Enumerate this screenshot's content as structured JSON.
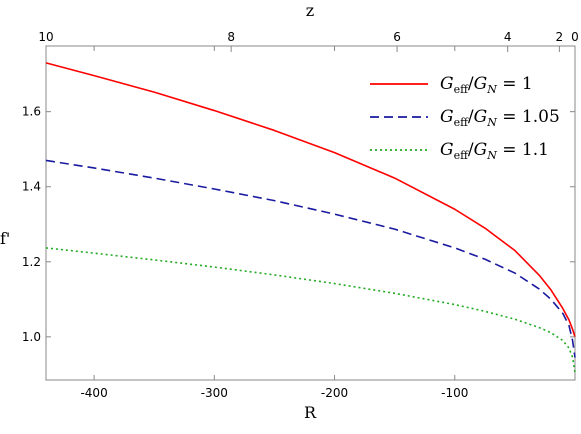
{
  "chart_data": {
    "type": "line",
    "xlabel": "R",
    "ylabel": "f'",
    "top_axis_label": "z",
    "xlim": [
      -440,
      0
    ],
    "ylim": [
      0.885,
      1.775
    ],
    "x_ticks": [
      -400,
      -300,
      -200,
      -100
    ],
    "x_tick_labels": [
      "-400",
      "-300",
      "-200",
      "-100"
    ],
    "y_ticks": [
      1.0,
      1.2,
      1.4,
      1.6
    ],
    "y_tick_labels": [
      "1.0",
      "1.2",
      "1.4",
      "1.6"
    ],
    "top_ticks": [
      {
        "label": "10",
        "R": -440
      },
      {
        "label": "8",
        "R": -286
      },
      {
        "label": "6",
        "R": -148
      },
      {
        "label": "4",
        "R": -56
      },
      {
        "label": "2",
        "R": -13
      },
      {
        "label": "0",
        "R": 0
      }
    ],
    "grid": false,
    "legend_position": "top-right",
    "series": [
      {
        "name": "Geff/GN = 1",
        "legend": {
          "G": "G",
          "sub1": "eff",
          "slash": "/",
          "G2": "G",
          "sub2": "N",
          "rhs": " = 1"
        },
        "color": "#ff0000",
        "dash": "solid",
        "x": [
          -440,
          -400,
          -350,
          -300,
          -250,
          -200,
          -150,
          -100,
          -75,
          -50,
          -30,
          -20,
          -10,
          -5,
          -2,
          0
        ],
        "y": [
          1.73,
          1.696,
          1.652,
          1.603,
          1.55,
          1.491,
          1.423,
          1.34,
          1.29,
          1.23,
          1.165,
          1.125,
          1.075,
          1.045,
          1.02,
          1.0
        ]
      },
      {
        "name": "Geff/GN = 1.05",
        "legend": {
          "G": "G",
          "sub1": "eff",
          "slash": "/",
          "G2": "G",
          "sub2": "N",
          "rhs": " = 1.05"
        },
        "color": "#1a1aa0",
        "dash": "dashed",
        "x": [
          -440,
          -400,
          -350,
          -300,
          -250,
          -200,
          -150,
          -100,
          -75,
          -50,
          -30,
          -20,
          -10,
          -5,
          -2,
          0
        ],
        "y": [
          1.47,
          1.45,
          1.423,
          1.394,
          1.363,
          1.327,
          1.287,
          1.237,
          1.207,
          1.17,
          1.128,
          1.1,
          1.062,
          1.03,
          0.99,
          0.945
        ]
      },
      {
        "name": "Geff/GN = 1.1",
        "legend": {
          "G": "G",
          "sub1": "eff",
          "slash": "/",
          "G2": "G",
          "sub2": "N",
          "rhs": " = 1.1"
        },
        "color": "#22aa22",
        "dash": "dotted",
        "x": [
          -440,
          -400,
          -350,
          -300,
          -250,
          -200,
          -150,
          -100,
          -75,
          -50,
          -30,
          -20,
          -10,
          -5,
          -2,
          0
        ],
        "y": [
          1.237,
          1.223,
          1.205,
          1.186,
          1.165,
          1.142,
          1.116,
          1.086,
          1.068,
          1.047,
          1.025,
          1.011,
          0.99,
          0.97,
          0.945,
          0.905
        ]
      }
    ]
  }
}
